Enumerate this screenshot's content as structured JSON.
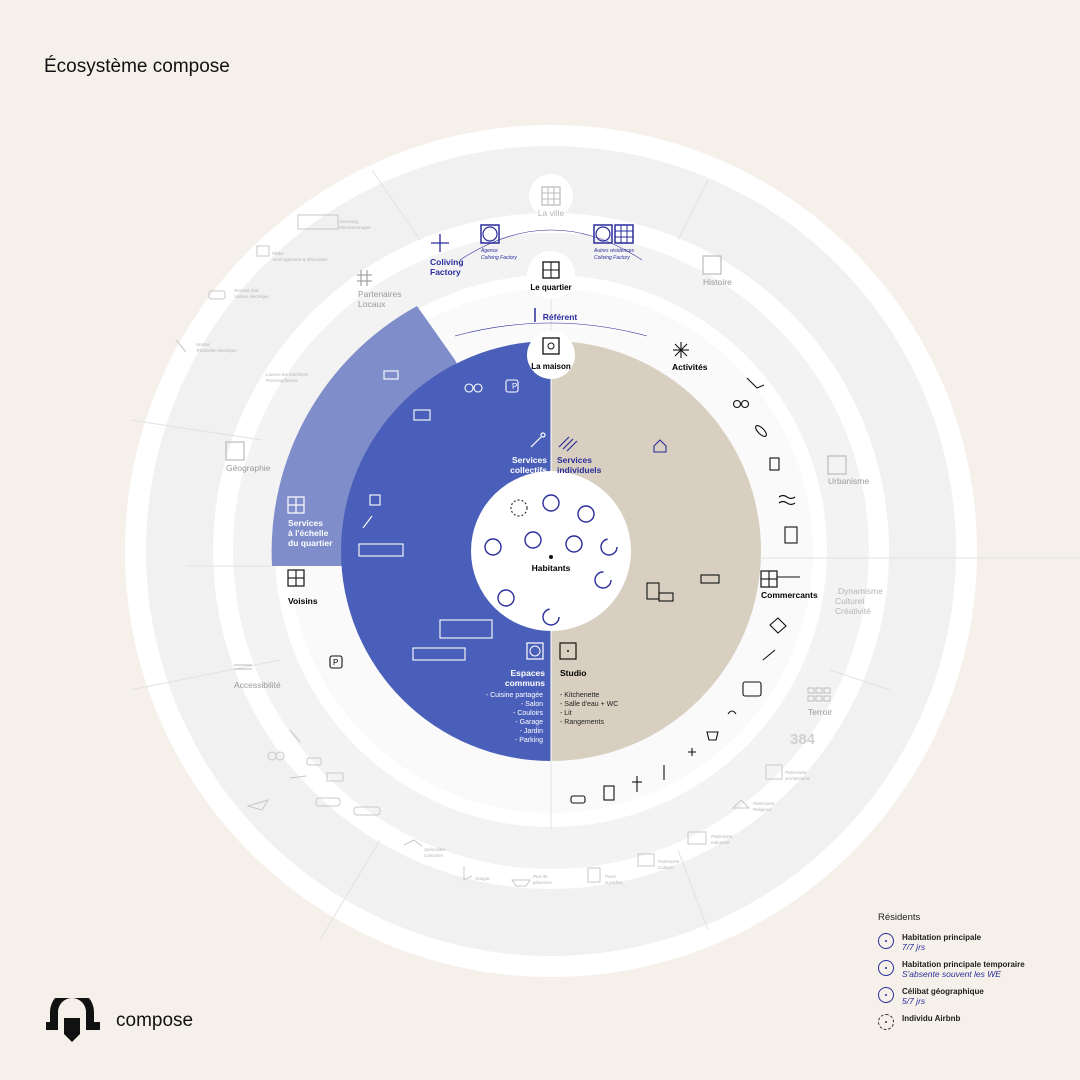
{
  "title": "Écosystème compose",
  "center": {
    "label": "Habitants"
  },
  "house": {
    "la_maison": "La maison",
    "services_collectifs": [
      "Services",
      "collectifs"
    ],
    "services_individuels": [
      "Services",
      "individuels"
    ],
    "espaces_communs": {
      "label": [
        "Espaces",
        "communs"
      ],
      "items": [
        "- Cuisine partagée",
        "- Salon",
        "- Couloirs",
        "- Garage",
        "- Jardin",
        "- Parking"
      ]
    },
    "studio": {
      "label": "Studio",
      "items": [
        "- Kitchenette",
        "- Salle d'eau + WC",
        "- Lit",
        "- Rangements"
      ]
    }
  },
  "quartier": {
    "le_quartier": "Le quartier",
    "referent": "Référent",
    "partenaires_locaux": [
      "Partenaires",
      "Locaux"
    ],
    "services_quartier": [
      "Services",
      "à l'échelle",
      "du quartier"
    ],
    "voisins": "Voisins",
    "activites": "Activités",
    "commercants": "Commercants",
    "coliving_factory": [
      "Coliving",
      "Factory"
    ],
    "agence": [
      "Agence",
      "Coliving Factory"
    ],
    "autres_residences": [
      "Autres résidences",
      "Coliving Factory"
    ]
  },
  "ville": {
    "la_ville": "La ville",
    "histoire": "Histoire",
    "urbanisme": "Urbanisme",
    "dynamisme": [
      "Dynamisme",
      "Culturel",
      "Créativité"
    ],
    "terroir": "Terroir",
    "accessibilite": "Accessibilité",
    "geographie": "Géographie",
    "score": "384"
  },
  "outer_notes": {
    "samsung": [
      "Samsung",
      "Electroménager"
    ],
    "ribba": [
      "Ribba",
      "Aménagement & décoration"
    ],
    "renault": [
      "Renault Zoé",
      "Voiture électrique"
    ],
    "nosaw": [
      "Nosaw",
      "Trottinette électrique"
    ],
    "lavilette": [
      "Laverie les Machines",
      "Pressing/laverie"
    ],
    "patrimoine_archi": [
      "Patrimoine",
      "architectural"
    ],
    "patrimoine_religieux": [
      "Patrimoine",
      "Religieux"
    ],
    "patrimoine_industriel": [
      "Patrimoine",
      "Industriel"
    ],
    "patrimoine_culturel": [
      "Patrimoine",
      "Culturel"
    ],
    "parcs": [
      "Parcs",
      "& jardins"
    ],
    "port": [
      "Port de",
      "plaisance"
    ],
    "nougat": "Nougat",
    "specialites": [
      "Spécialités",
      "culinaires"
    ]
  },
  "legend": {
    "header": "Résidents",
    "items": [
      {
        "t1": "Habitation principale",
        "t2": "7/7 jrs",
        "style": "solid"
      },
      {
        "t1": "Habitation principale temporaire",
        "t2": "S'absente souvent les WE",
        "style": "solid"
      },
      {
        "t1": "Célibat géographique",
        "t2": "5/7 jrs",
        "style": "solid"
      },
      {
        "t1": "Individu Airbnb",
        "t2": "",
        "style": "dashed"
      }
    ]
  },
  "brand": {
    "name": "compose"
  },
  "colors": {
    "background": "#f5f1ea",
    "collective_blue": "#4a5fb9",
    "quartier_blue": "#7f8dcb",
    "individual_beige": "#d8cfc0",
    "dark_blue": "#2a2d9c",
    "ring_white": "#ffffff",
    "ring_grey": "#f1f1f1",
    "faded_text": "#b5b5b5"
  }
}
